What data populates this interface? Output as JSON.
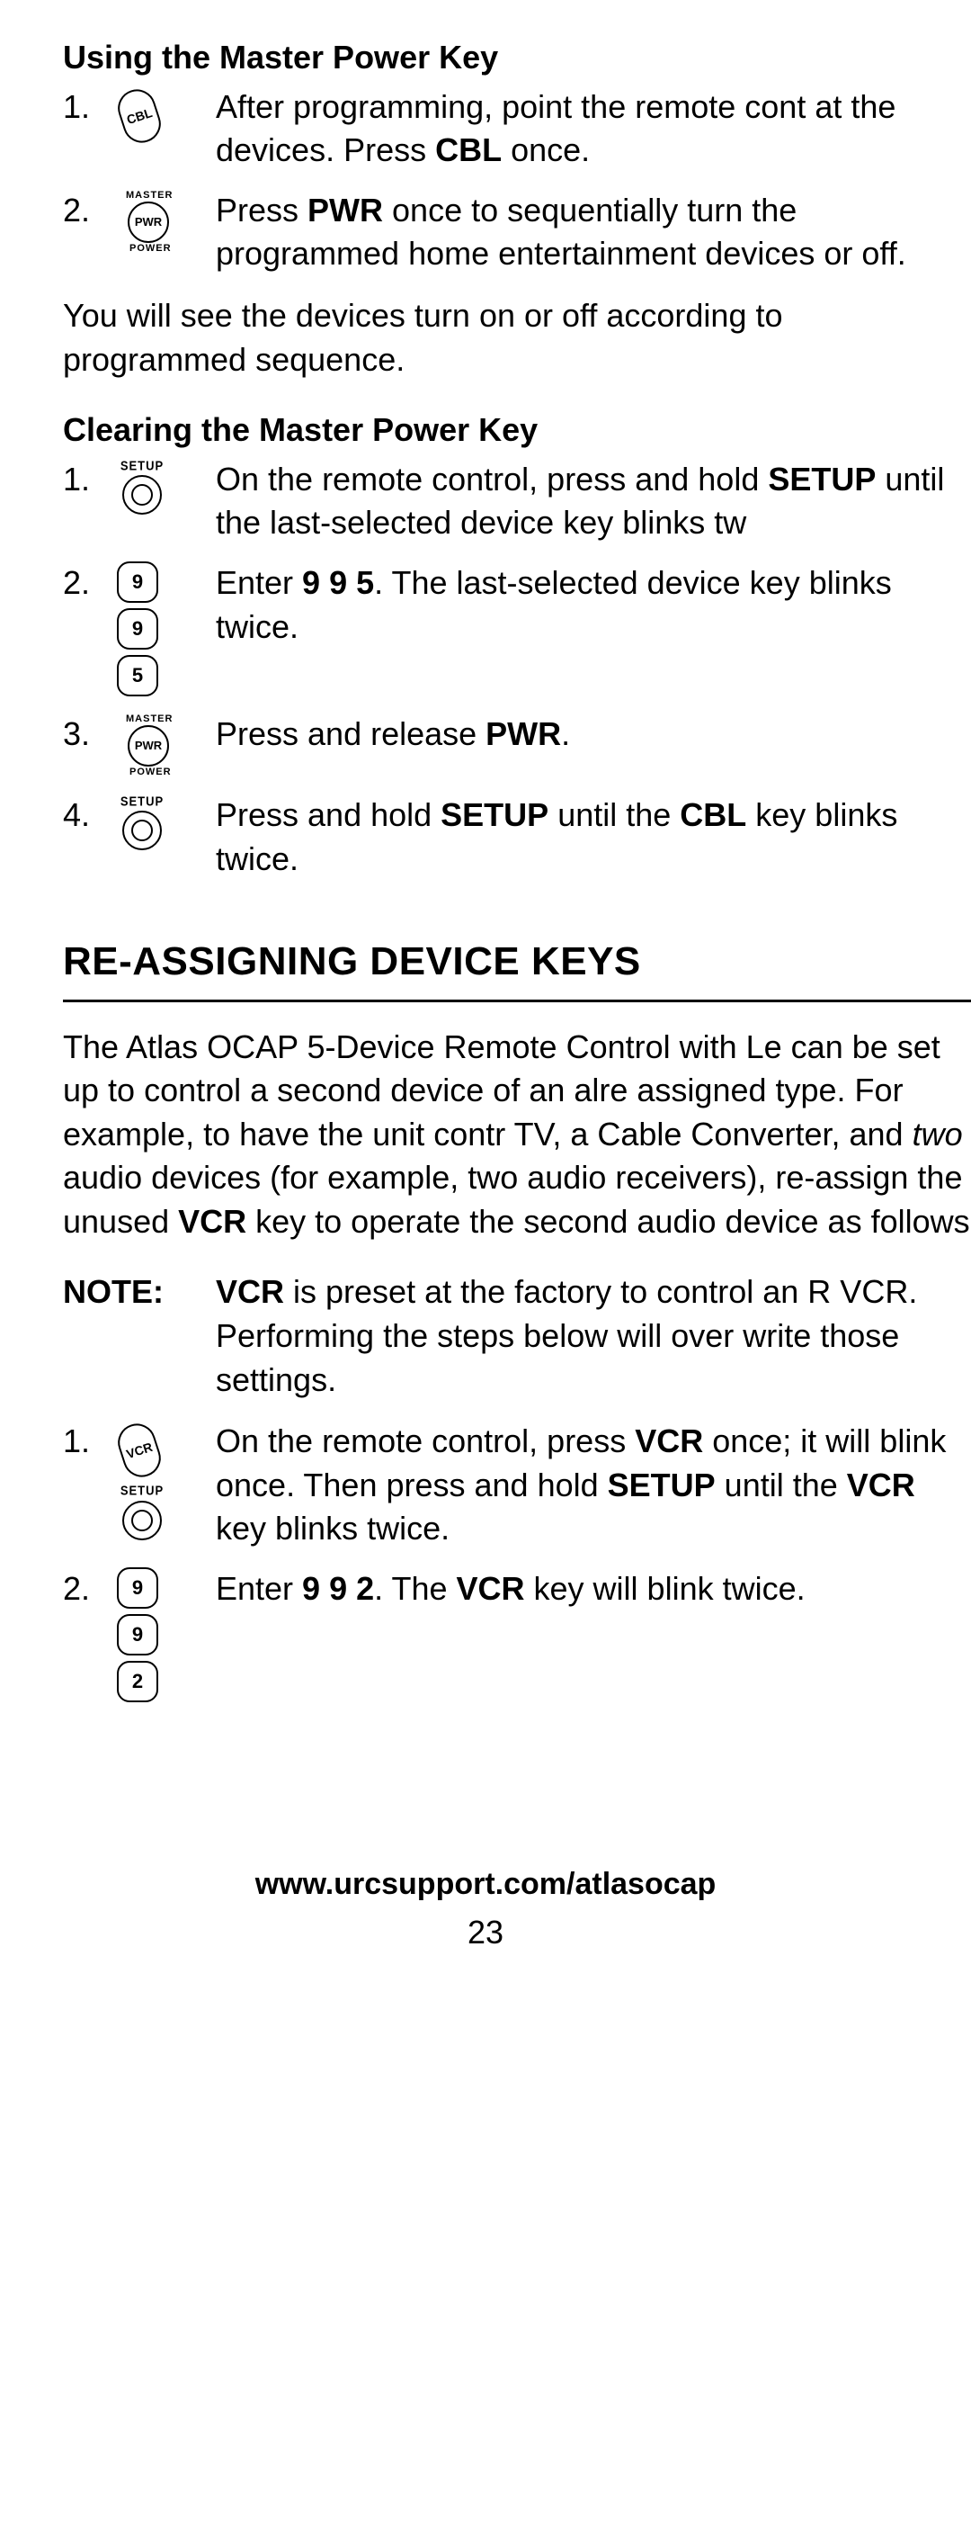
{
  "using_heading": "Using the Master Power Key",
  "using_steps": [
    {
      "num": "1.",
      "text_html": "After programming, point the remote cont at the devices. Press <b>CBL</b> once.",
      "icons": [
        {
          "type": "pill",
          "label": "CBL"
        }
      ]
    },
    {
      "num": "2.",
      "text_html": "Press <b>PWR</b> once to sequentially turn the programmed home entertainment devices or off.",
      "icons": [
        {
          "type": "pwr"
        }
      ]
    }
  ],
  "using_para": "You will see the devices turn on or off according to programmed sequence.",
  "clearing_heading": "Clearing the Master Power Key",
  "clearing_steps": [
    {
      "num": "1.",
      "text_html": "On the remote control, press and hold <b>SETUP</b> until the last-selected device key blinks tw",
      "icons": [
        {
          "type": "setup"
        }
      ]
    },
    {
      "num": "2.",
      "text_html": "Enter <b>9 9 5</b>. The last-selected device key blinks twice.",
      "icons": [
        {
          "type": "num",
          "label": "9"
        },
        {
          "type": "num",
          "label": "9"
        },
        {
          "type": "num",
          "label": "5"
        }
      ]
    },
    {
      "num": "3.",
      "text_html": "Press and release <b>PWR</b>.",
      "icons": [
        {
          "type": "pwr"
        }
      ]
    },
    {
      "num": "4.",
      "text_html": "Press and hold <b>SETUP</b> until the <b>CBL</b> key blinks twice.",
      "icons": [
        {
          "type": "setup"
        }
      ]
    }
  ],
  "reassign_heading": "RE-ASSIGNING DEVICE KEYS",
  "reassign_para_html": "The Atlas OCAP 5-Device Remote Control with Le can be set up to control a second device of an alre assigned type. For example, to have the unit contr TV, a Cable Converter, and <i>two</i> audio devices (for example, two audio receivers), re-assign the unused <b>VCR</b> key to operate the second audio device as follows",
  "note_label": "NOTE:",
  "note_html": "<b>VCR</b> is preset at the factory to control an R VCR. Performing the steps below will over write those settings.",
  "reassign_steps": [
    {
      "num": "1.",
      "text_html": "On the remote control, press <b>VCR</b> once; it will blink once. Then press and hold <b>SETUP</b> until the <b>VCR</b> key blinks twice.",
      "icons": [
        {
          "type": "pill",
          "label": "VCR"
        },
        {
          "type": "setup"
        }
      ]
    },
    {
      "num": "2.",
      "text_html": "Enter <b>9 9 2</b>. The <b>VCR</b> key will blink twice.",
      "icons": [
        {
          "type": "num",
          "label": "9"
        },
        {
          "type": "num",
          "label": "9"
        },
        {
          "type": "num",
          "label": "2"
        }
      ]
    }
  ],
  "footer_url": "www.urcsupport.com/atlasocap",
  "page_number": "23"
}
